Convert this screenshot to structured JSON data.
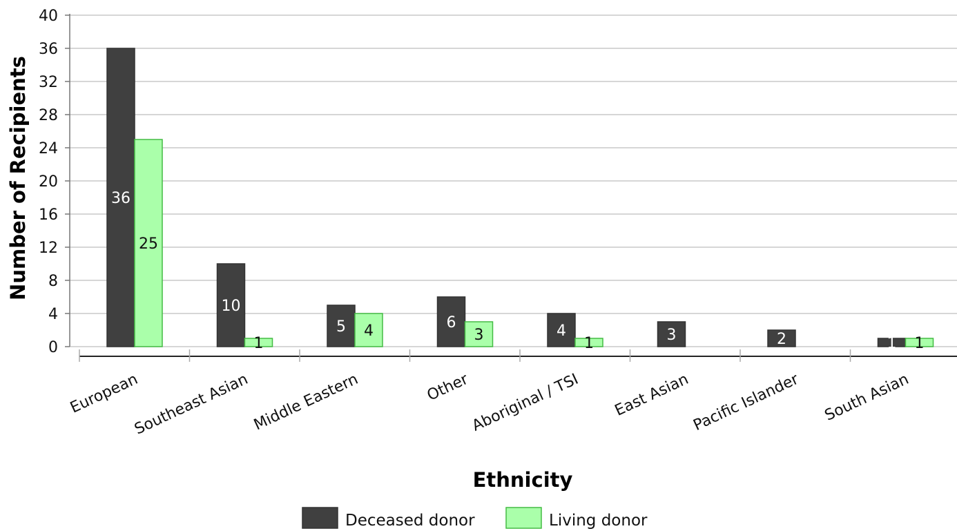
{
  "chart_data": {
    "type": "bar",
    "xlabel": "Ethnicity",
    "ylabel": "Number of Recipients",
    "ylim": [
      0,
      40
    ],
    "yticks": [
      0,
      4,
      8,
      12,
      16,
      20,
      24,
      28,
      32,
      36,
      40
    ],
    "grid": true,
    "legend_position": "bottom",
    "categories": [
      "European",
      "Southeast Asian",
      "Middle Eastern",
      "Other",
      "Aboriginal / TSI",
      "East Asian",
      "Pacific Islander",
      "South Asian"
    ],
    "series": [
      {
        "name": "Deceased donor",
        "values": [
          36,
          10,
          5,
          6,
          4,
          3,
          2,
          1
        ],
        "color": "#404040",
        "stroke": "#333333",
        "label_color": "#ffffff"
      },
      {
        "name": "Living donor",
        "values": [
          25,
          1,
          4,
          3,
          1,
          0,
          0,
          1
        ],
        "color": "#aaffaa",
        "stroke": "#44bb44",
        "label_color": "#111111"
      }
    ]
  }
}
